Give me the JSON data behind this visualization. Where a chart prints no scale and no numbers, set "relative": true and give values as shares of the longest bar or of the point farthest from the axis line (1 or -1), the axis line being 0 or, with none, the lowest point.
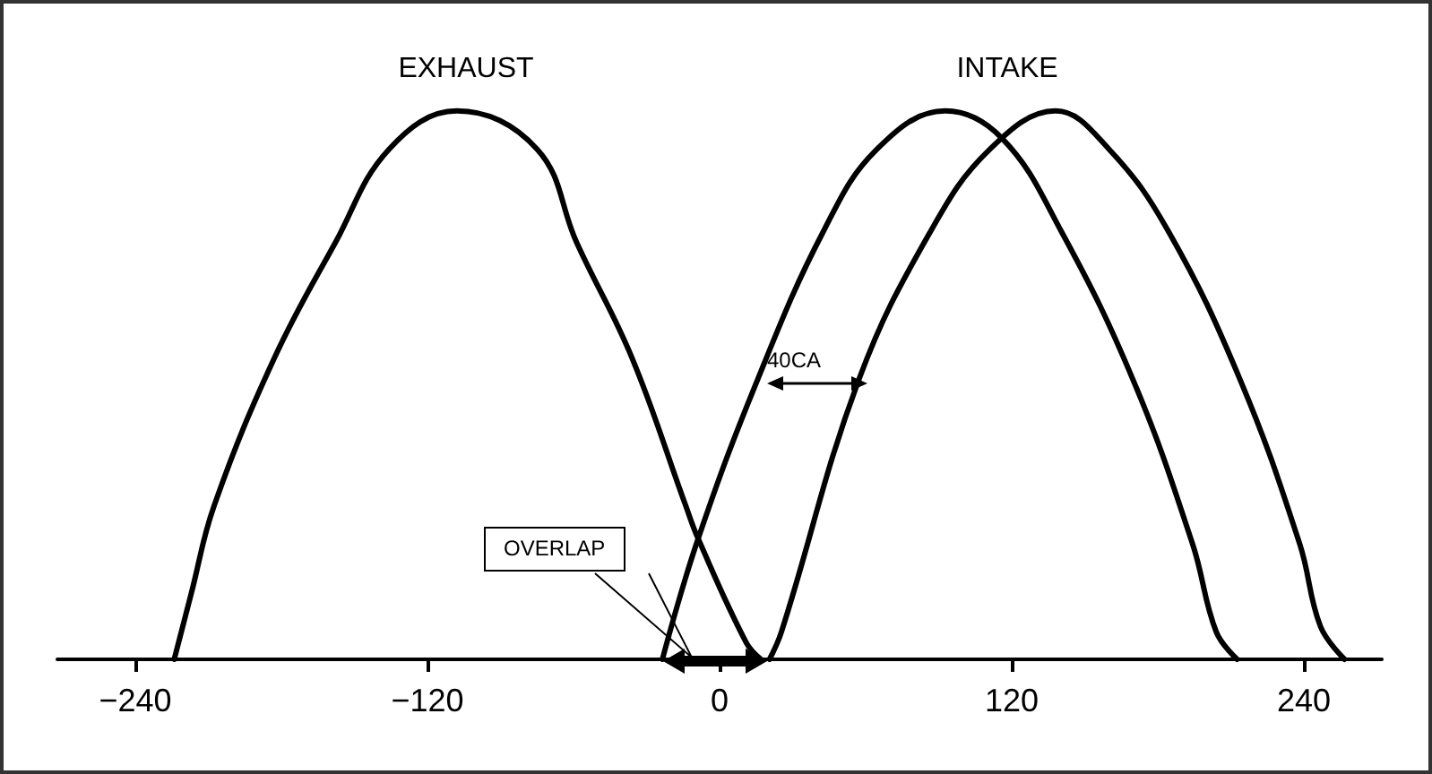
{
  "chart_data": {
    "type": "line",
    "relative": true,
    "xlim": [
      -272,
      272
    ],
    "xticks": [
      -240,
      -120,
      0,
      120,
      240
    ],
    "grid": false,
    "series": [
      {
        "color": "#000000",
        "x": [
          -224,
          -217,
          -207.6,
          -182.8,
          -157.8,
          -135.8,
          -107.9,
          -74.9,
          -58.7,
          -36,
          -13.9,
          -8.8,
          11,
          17
        ],
        "values": [
          0,
          0.12,
          0.28,
          0.55,
          0.76,
          0.93,
          1,
          0.93,
          0.76,
          0.55,
          0.28,
          0.22,
          0.03,
          0
        ]
      },
      {
        "color": "#000000",
        "x": [
          -23.5,
          -8.8,
          15.6,
          42.6,
          64.6,
          92.7,
          116,
          140.4,
          169.8,
          194.3,
          204,
          212.6
        ],
        "values": [
          0,
          0.22,
          0.51,
          0.78,
          0.93,
          1,
          0.95,
          0.78,
          0.51,
          0.21,
          0.05,
          0
        ]
      },
      {
        "color": "#000000",
        "x": [
          20.5,
          25.4,
          57.2,
          86.6,
          111,
          138,
          160,
          184.4,
          213.8,
          238.3,
          246.8,
          256.7
        ],
        "values": [
          0,
          0.05,
          0.51,
          0.78,
          0.93,
          1,
          0.93,
          0.78,
          0.51,
          0.21,
          0.06,
          0
        ]
      }
    ],
    "annotations": [
      "EXHAUST",
      "INTAKE",
      "OVERLAP",
      "40CA"
    ]
  }
}
